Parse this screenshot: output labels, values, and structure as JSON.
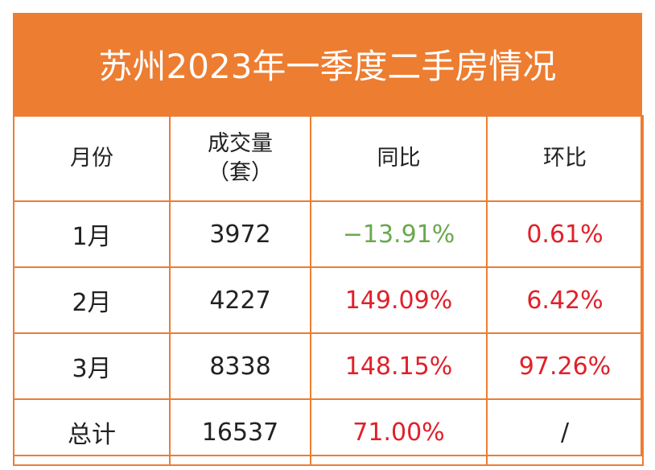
{
  "header": {
    "title": "苏州2023年一季度二手房情况"
  },
  "table": {
    "columns": [
      "月份",
      "成交量\n（套）",
      "同比",
      "环比"
    ],
    "rows": [
      [
        "1月",
        "3972",
        "−13.91%",
        "0.61%"
      ],
      [
        "2月",
        "4227",
        "149.09%",
        "6.42%"
      ],
      [
        "3月",
        "8338",
        "148.15%",
        "97.26%"
      ],
      [
        "总计",
        "16537",
        "71.00%",
        "/"
      ]
    ]
  }
}
